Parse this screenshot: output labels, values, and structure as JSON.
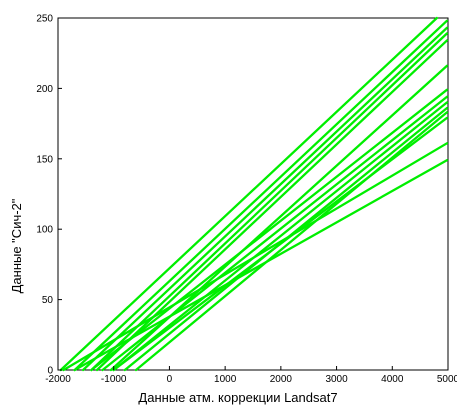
{
  "chart_data": {
    "type": "line",
    "title": "",
    "xlabel": "Данные атм. коррекции Landsat7",
    "ylabel": "Данные \"Сич-2\"",
    "xlim": [
      -2000,
      5000
    ],
    "ylim": [
      0,
      250
    ],
    "xticks": [
      -2000,
      -1000,
      0,
      1000,
      2000,
      3000,
      4000,
      5000
    ],
    "xtick_labels": [
      "-2000",
      "-1000",
      "0",
      "1000",
      "2000",
      "3000",
      "4000",
      "5000"
    ],
    "yticks": [
      0,
      50,
      100,
      150,
      200,
      250
    ],
    "ytick_labels": [
      "0",
      "50",
      "100",
      "150",
      "200",
      "250"
    ],
    "grid": false,
    "legend": "none",
    "line_color": "#00ee00",
    "series": [
      {
        "x": [
          -1950,
          4800
        ],
        "y": [
          0,
          250
        ]
      },
      {
        "x": [
          -1700,
          4980
        ],
        "y": [
          0,
          248
        ]
      },
      {
        "x": [
          -1550,
          4980
        ],
        "y": [
          0,
          243
        ]
      },
      {
        "x": [
          -1400,
          4980
        ],
        "y": [
          0,
          239
        ]
      },
      {
        "x": [
          -1300,
          4980
        ],
        "y": [
          0,
          234
        ]
      },
      {
        "x": [
          -1050,
          4980
        ],
        "y": [
          0,
          216
        ]
      },
      {
        "x": [
          -1400,
          4980
        ],
        "y": [
          0,
          199
        ]
      },
      {
        "x": [
          -1200,
          4980
        ],
        "y": [
          0,
          194
        ]
      },
      {
        "x": [
          -1000,
          4980
        ],
        "y": [
          0,
          190
        ]
      },
      {
        "x": [
          -800,
          4980
        ],
        "y": [
          0,
          186
        ]
      },
      {
        "x": [
          -600,
          4980
        ],
        "y": [
          0,
          183
        ]
      },
      {
        "x": [
          -1000,
          4980
        ],
        "y": [
          0,
          179
        ]
      },
      {
        "x": [
          -1900,
          4980
        ],
        "y": [
          0,
          161
        ]
      },
      {
        "x": [
          -1700,
          4980
        ],
        "y": [
          0,
          149
        ]
      }
    ]
  }
}
